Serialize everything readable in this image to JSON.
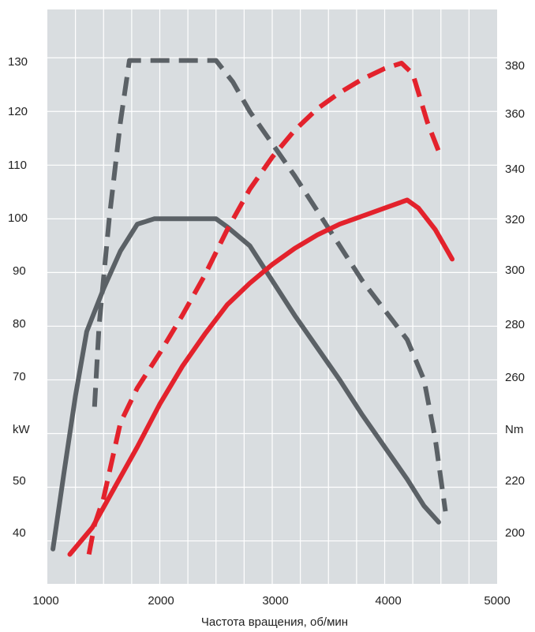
{
  "chart_data": {
    "type": "line",
    "title": "",
    "xlabel": "Частота вращения, об/мин",
    "ylabel_left": "kW",
    "ylabel_right": "Nm",
    "xlim": [
      1000,
      5000
    ],
    "ylim_left": [
      32,
      139
    ],
    "ylim_right": [
      186,
      400
    ],
    "x_ticks": [
      "1000",
      "2000",
      "3000",
      "4000",
      "5000"
    ],
    "y_left_ticks": [
      "40",
      "50",
      "70",
      "80",
      "90",
      "100",
      "110",
      "120",
      "130"
    ],
    "y_right_ticks": [
      "200",
      "220",
      "260",
      "280",
      "300",
      "320",
      "340",
      "360",
      "380"
    ],
    "grid": true,
    "colors": {
      "background": "#d9dde0",
      "grid": "#ffffff",
      "gray": "#5b6166",
      "red": "#e3222c"
    },
    "series": [
      {
        "axis": "left",
        "style": "solid",
        "color": "#5b6166",
        "points": [
          [
            1050,
            38.5
          ],
          [
            1150,
            53
          ],
          [
            1250,
            67
          ],
          [
            1350,
            79
          ],
          [
            1500,
            87
          ],
          [
            1650,
            94
          ],
          [
            1800,
            99
          ],
          [
            1950,
            100
          ],
          [
            2500,
            100
          ],
          [
            2600,
            98.5
          ],
          [
            2800,
            95
          ],
          [
            3000,
            88.5
          ],
          [
            3200,
            82
          ],
          [
            3400,
            76
          ],
          [
            3600,
            70
          ],
          [
            3800,
            63.5
          ],
          [
            4000,
            57.5
          ],
          [
            4200,
            51.5
          ],
          [
            4350,
            46.5
          ],
          [
            4480,
            43.5
          ]
        ]
      },
      {
        "axis": "left",
        "style": "dashed",
        "color": "#5b6166",
        "points": [
          [
            1420,
            65
          ],
          [
            1460,
            80
          ],
          [
            1550,
            100
          ],
          [
            1650,
            118
          ],
          [
            1730,
            129.5
          ],
          [
            2500,
            129.5
          ],
          [
            2650,
            125.5
          ],
          [
            2800,
            120
          ],
          [
            3000,
            114
          ],
          [
            3200,
            108
          ],
          [
            3400,
            101.5
          ],
          [
            3600,
            95
          ],
          [
            3800,
            88.5
          ],
          [
            4000,
            83
          ],
          [
            4200,
            77.5
          ],
          [
            4350,
            70
          ],
          [
            4450,
            59
          ],
          [
            4540,
            45.5
          ]
        ]
      },
      {
        "axis": "left",
        "style": "solid",
        "color": "#e3222c",
        "points": [
          [
            1200,
            37.5
          ],
          [
            1400,
            42.5
          ],
          [
            1600,
            50
          ],
          [
            1800,
            57.5
          ],
          [
            2000,
            65.5
          ],
          [
            2200,
            72.5
          ],
          [
            2400,
            78.5
          ],
          [
            2600,
            84
          ],
          [
            2800,
            88
          ],
          [
            3000,
            91.5
          ],
          [
            3200,
            94.5
          ],
          [
            3400,
            97
          ],
          [
            3600,
            99
          ],
          [
            3800,
            100.5
          ],
          [
            4000,
            102
          ],
          [
            4200,
            103.5
          ],
          [
            4300,
            102
          ],
          [
            4450,
            98
          ],
          [
            4600,
            92.5
          ]
        ]
      },
      {
        "axis": "left",
        "style": "dashed",
        "color": "#e3222c",
        "points": [
          [
            1370,
            37.5
          ],
          [
            1420,
            43
          ],
          [
            1500,
            48
          ],
          [
            1650,
            62
          ],
          [
            1800,
            68.5
          ],
          [
            2000,
            75
          ],
          [
            2200,
            82
          ],
          [
            2400,
            89.5
          ],
          [
            2600,
            98
          ],
          [
            2800,
            105.5
          ],
          [
            3000,
            111.5
          ],
          [
            3200,
            116.5
          ],
          [
            3400,
            120.5
          ],
          [
            3600,
            123.5
          ],
          [
            3800,
            126
          ],
          [
            4000,
            128
          ],
          [
            4150,
            129
          ],
          [
            4250,
            127
          ],
          [
            4380,
            118
          ],
          [
            4500,
            111.5
          ]
        ]
      }
    ]
  }
}
